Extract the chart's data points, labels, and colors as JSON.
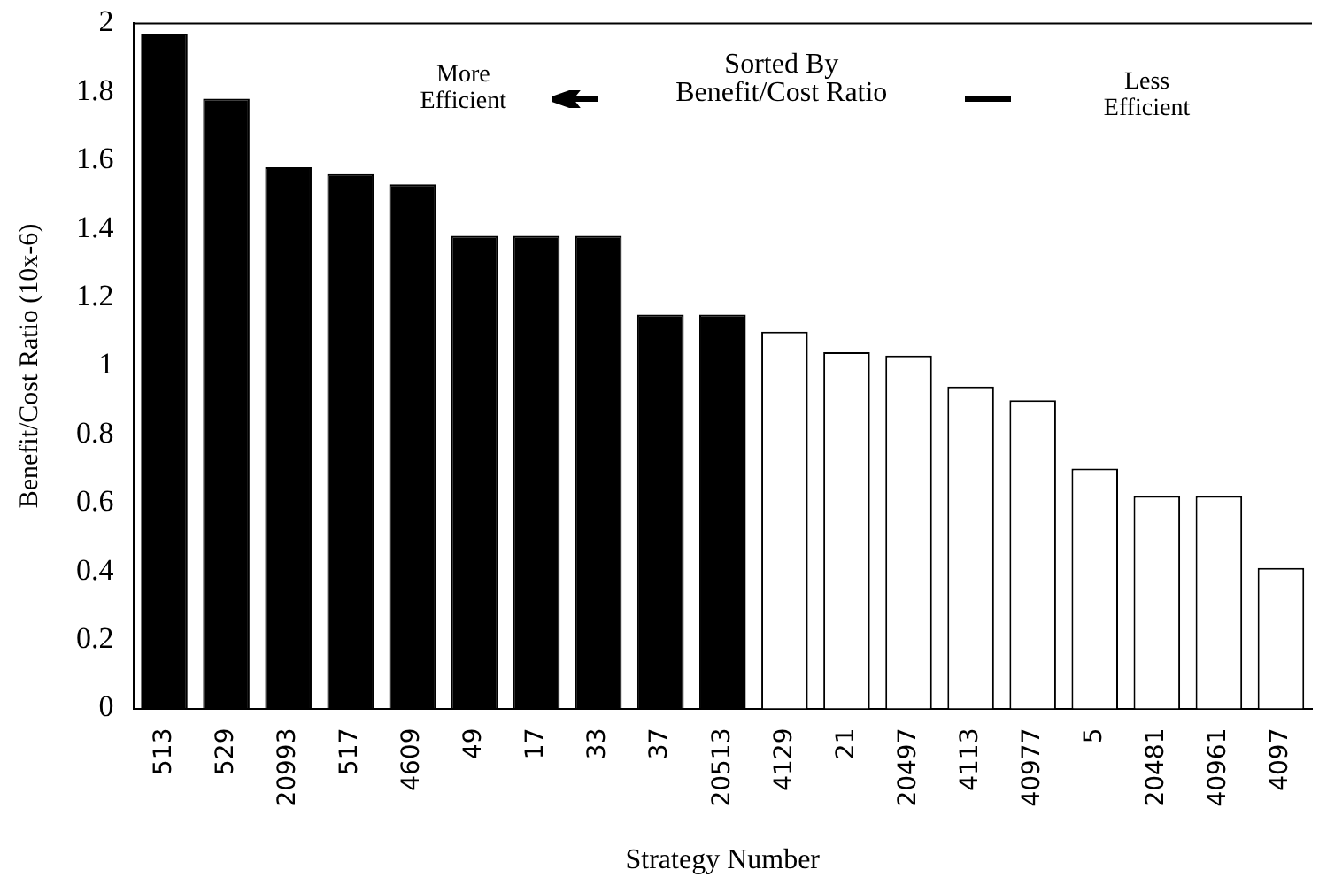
{
  "chart_data": {
    "type": "bar",
    "xlabel": "Strategy Number",
    "ylabel": "Benefit/Cost Ratio (10x-6)",
    "categories": [
      "513",
      "529",
      "20993",
      "517",
      "4609",
      "49",
      "17",
      "33",
      "37",
      "20513",
      "4129",
      "21",
      "20497",
      "4113",
      "40977",
      "5",
      "20481",
      "40961",
      "4097"
    ],
    "values": [
      1.97,
      1.78,
      1.58,
      1.56,
      1.53,
      1.38,
      1.38,
      1.38,
      1.15,
      1.15,
      1.1,
      1.04,
      1.03,
      0.94,
      0.9,
      0.7,
      0.62,
      0.62,
      0.41
    ],
    "colors": [
      "#000000",
      "#000000",
      "#000000",
      "#000000",
      "#000000",
      "#000000",
      "#000000",
      "#000000",
      "#000000",
      "#000000",
      "#ffffff",
      "#ffffff",
      "#ffffff",
      "#ffffff",
      "#ffffff",
      "#ffffff",
      "#ffffff",
      "#ffffff",
      "#ffffff"
    ],
    "ylim": [
      0,
      2
    ],
    "yticks": [
      0,
      0.2,
      0.4,
      0.6,
      0.8,
      1,
      1.2,
      1.4,
      1.6,
      1.8,
      2
    ],
    "annotations": [
      "More Efficient",
      "Sorted By Benefit/Cost Ratio",
      "Less Efficient"
    ],
    "grid": false,
    "legend": false
  }
}
